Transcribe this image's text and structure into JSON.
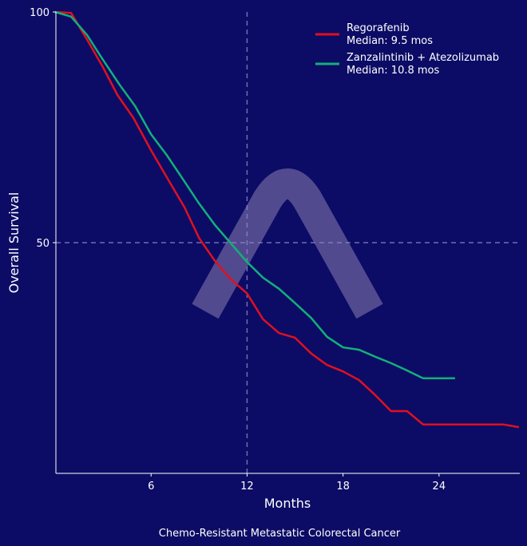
{
  "chart_data": {
    "type": "line",
    "title": "Chemo-Resistant Metastatic Colorectal Cancer",
    "xlabel": "Months",
    "ylabel": "Overall Survival",
    "xlim": [
      0,
      29
    ],
    "ylim": [
      0,
      100
    ],
    "xticks": [
      6,
      12,
      18,
      24
    ],
    "yticks": [
      50,
      100
    ],
    "reference_lines": {
      "x": 12,
      "y": 50
    },
    "grid": false,
    "legend_position": "top-right",
    "series": [
      {
        "name": "Regorafenib",
        "legend_sub": "Median: 9.5 mos",
        "color": "#e0101f",
        "x": [
          0,
          1,
          2,
          3,
          3.9,
          4.9,
          6,
          7.1,
          8.1,
          9,
          10,
          11,
          12,
          13,
          14,
          15,
          16,
          17,
          18,
          19,
          20,
          21,
          22,
          23,
          24,
          28,
          29
        ],
        "y": [
          100,
          99.8,
          94,
          88,
          82,
          77,
          70,
          63.5,
          57.6,
          51,
          46,
          42,
          39,
          33.4,
          30.4,
          29.4,
          26,
          23.5,
          22.1,
          20.2,
          17,
          13.5,
          13.5,
          10.6,
          10.6,
          10.6,
          10
        ]
      },
      {
        "name": "Zanzalintinib + Atezolizumab",
        "legend_sub": "Median: 10.8 mos",
        "color": "#12b07a",
        "x": [
          0,
          1,
          2,
          3,
          4,
          5,
          6,
          7,
          8,
          9,
          10,
          11,
          12,
          13,
          14,
          15,
          16,
          17,
          18,
          19,
          20,
          21,
          22,
          23,
          25
        ],
        "y": [
          100,
          99,
          95,
          89.6,
          84.4,
          79.6,
          73.5,
          68.9,
          63.7,
          58.5,
          53.8,
          49.8,
          45.8,
          42.4,
          40,
          36.9,
          33.7,
          29.6,
          27.3,
          26.8,
          25.3,
          23.9,
          22.3,
          20.6,
          20.6
        ]
      }
    ]
  }
}
